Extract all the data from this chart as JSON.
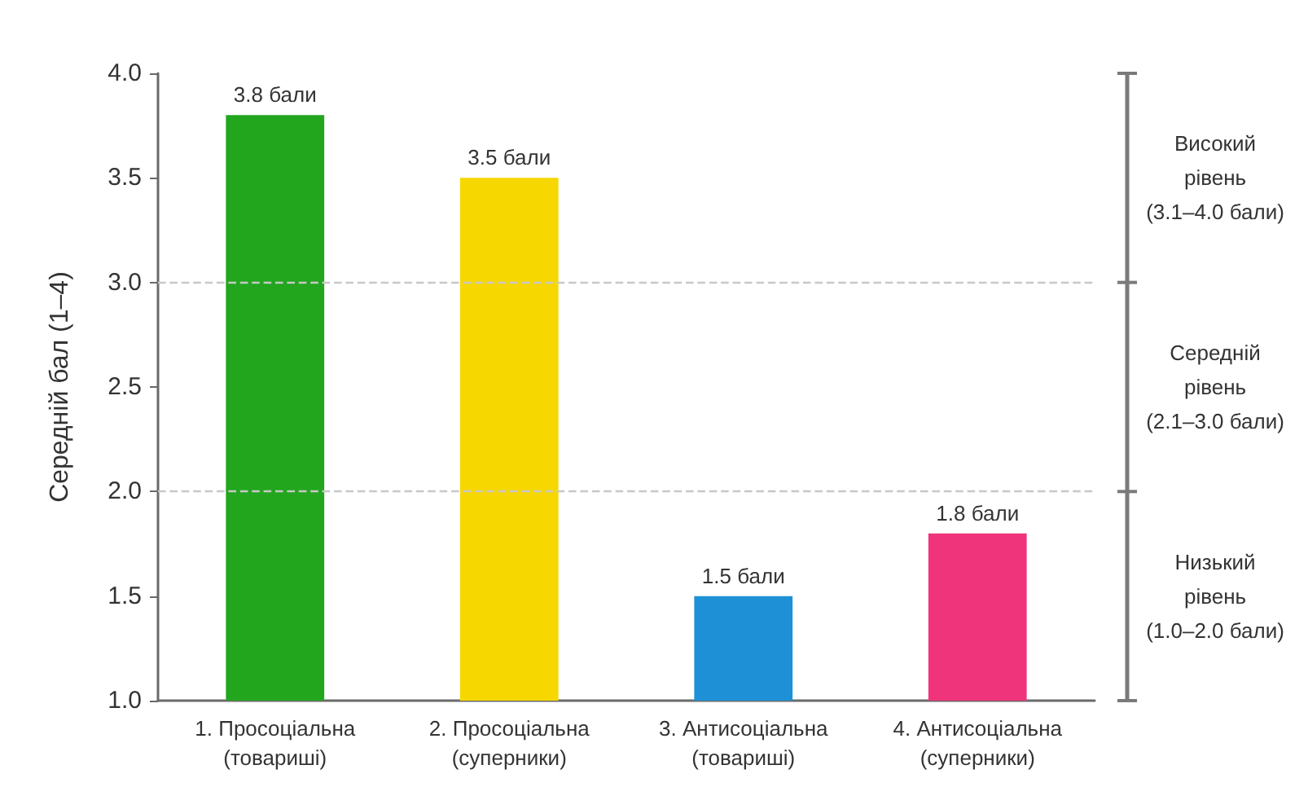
{
  "chart_data": {
    "type": "bar",
    "categories": [
      "1. Просоціальна\n(товариші)",
      "2. Просоціальна\n(суперники)",
      "3. Антисоціальна\n(товариші)",
      "4. Антисоціальна\n(суперники)"
    ],
    "values": [
      3.8,
      3.5,
      1.5,
      1.8
    ],
    "colors": [
      "#22a61e",
      "#f7d700",
      "#1e90d6",
      "#f0347c"
    ],
    "value_labels": [
      "3.8 бали",
      "3.5 бали",
      "1.5 бали",
      "1.8 бали"
    ],
    "ylabel": "Середній бал (1–4)",
    "ylim": [
      1,
      4
    ],
    "yticks": [
      {
        "value": 1,
        "label": "1.0"
      },
      {
        "value": 1.5,
        "label": "1.5"
      },
      {
        "value": 2,
        "label": "2.0"
      },
      {
        "value": 2.5,
        "label": "2.5"
      },
      {
        "value": 3,
        "label": "3.0"
      },
      {
        "value": 3.5,
        "label": "3.5"
      },
      {
        "value": 4,
        "label": "4.0"
      }
    ],
    "ref_lines": [
      {
        "axis": "y",
        "value": 2,
        "color": "#c8c8c8",
        "line_style": "dashed"
      },
      {
        "axis": "y",
        "value": 3,
        "color": "#c8c8c8",
        "line_style": "dashed"
      }
    ],
    "annotations": [
      "Високий\nрівень\n(3.1–4.0 бали)",
      "Середній\nрівень\n(2.1–3.0 бали)",
      "Низький\nрівень\n(1.0–2.0 бали)"
    ]
  }
}
